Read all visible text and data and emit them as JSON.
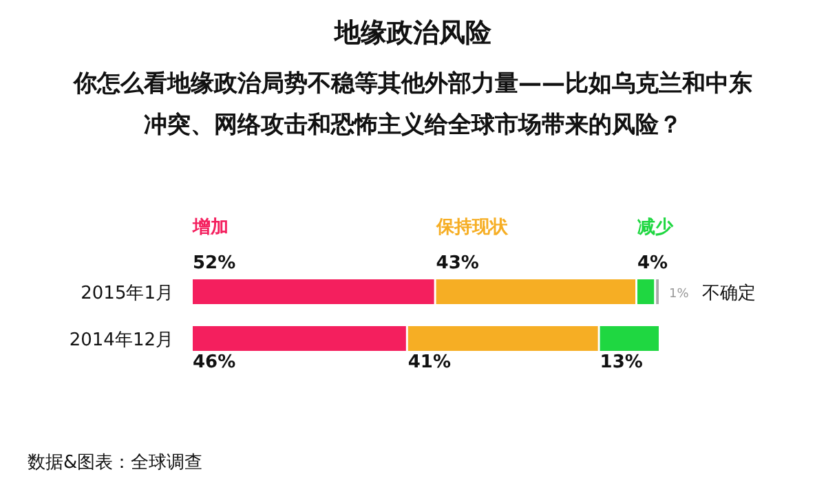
{
  "chart_data": {
    "type": "bar",
    "orientation": "horizontal",
    "stacked": true,
    "title": "地缘政治风险",
    "subtitle": "你怎么看地缘政治局势不稳等其他外部力量——比如乌克兰和中东冲突、网络攻击和恐怖主义给全球市场带来的风险？",
    "categories": [
      "2015年1月",
      "2014年12月"
    ],
    "xlim": [
      0,
      100
    ],
    "series": [
      {
        "name": "增加",
        "color": "#f41f5e",
        "values": [
          52,
          46
        ],
        "value_labels": [
          "52%",
          "46%"
        ]
      },
      {
        "name": "保持现状",
        "color": "#f6ae24",
        "values": [
          43,
          41
        ],
        "value_labels": [
          "43%",
          "41%"
        ]
      },
      {
        "name": "减少",
        "color": "#1fd741",
        "values": [
          4,
          13
        ],
        "value_labels": [
          "4%",
          "13%"
        ]
      },
      {
        "name": "不确定",
        "color": "#a9a9a9",
        "values": [
          1,
          null
        ],
        "value_labels": [
          "1%",
          null
        ]
      }
    ],
    "annotations": [
      "数据&图表：全球调查"
    ]
  }
}
